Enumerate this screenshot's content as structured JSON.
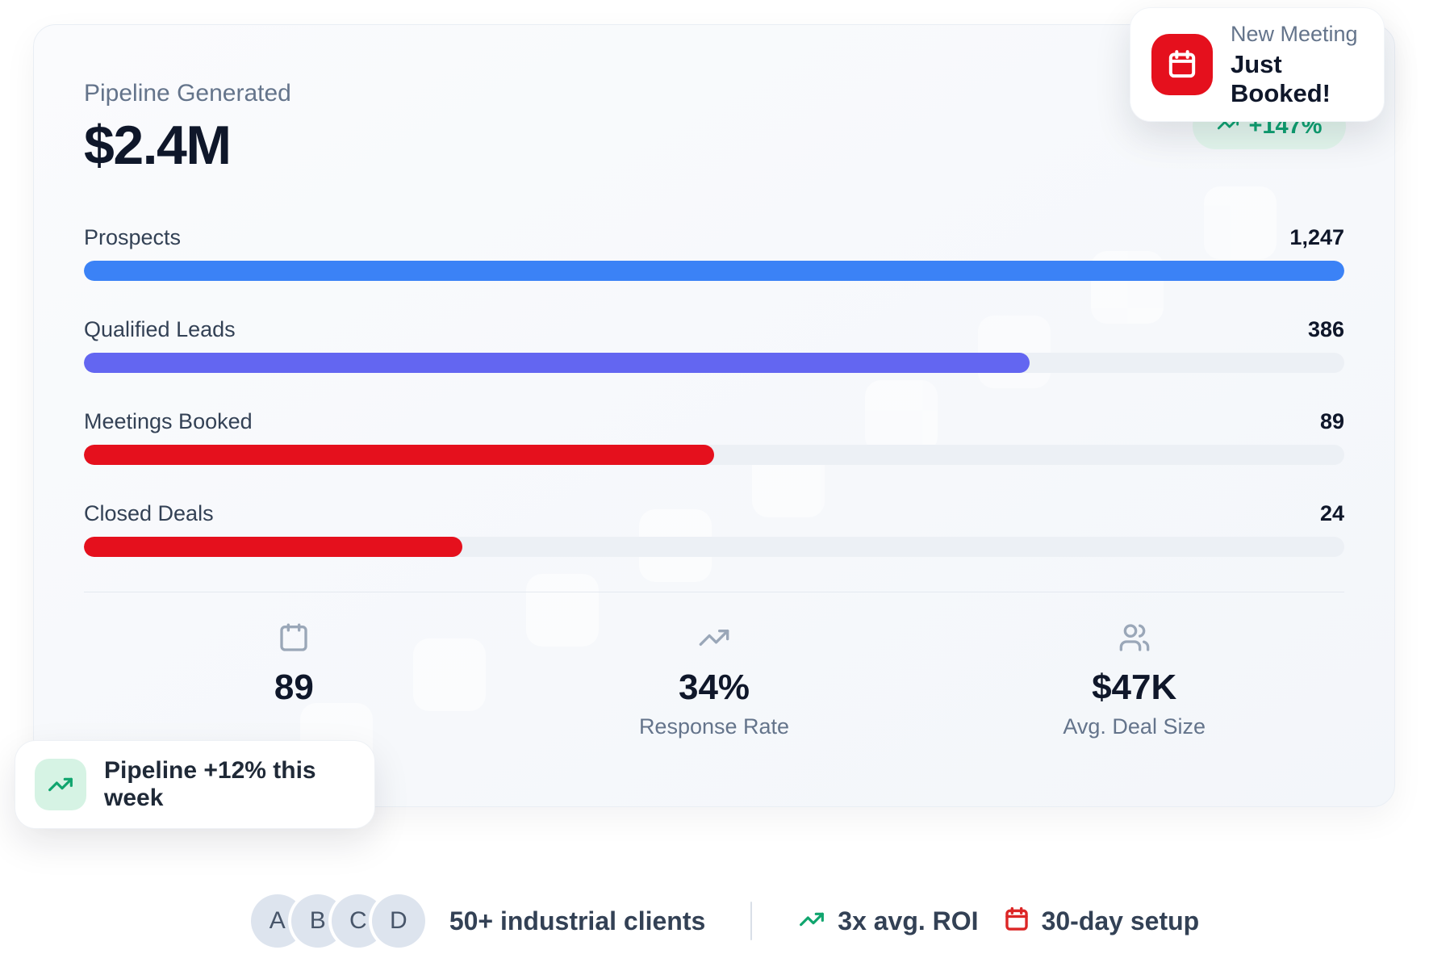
{
  "card": {
    "title": "Pipeline Generated",
    "amount": "$2.4M",
    "growth_badge": {
      "label": "+147%",
      "icon": "trend-up-icon"
    },
    "funnel": [
      {
        "label": "Prospects",
        "value": "1,247",
        "pct": 100,
        "color": "#3b82f6"
      },
      {
        "label": "Qualified Leads",
        "value": "386",
        "pct": 75,
        "color": "#6366f1"
      },
      {
        "label": "Meetings Booked",
        "value": "89",
        "pct": 50,
        "color": "#e5101d"
      },
      {
        "label": "Closed Deals",
        "value": "24",
        "pct": 30,
        "color": "#e5101d"
      }
    ],
    "stats": [
      {
        "icon": "calendar-icon",
        "value": "89"
      },
      {
        "icon": "trend-up-icon",
        "value": "34%",
        "label": "Response Rate"
      },
      {
        "icon": "users-icon",
        "value": "$47K",
        "label": "Avg. Deal Size"
      }
    ]
  },
  "notification": {
    "title": "New Meeting",
    "subtitle": "Just Booked!",
    "icon": "calendar-icon"
  },
  "toast": {
    "label": "Pipeline +12% this week",
    "icon": "trend-up-icon"
  },
  "footer": {
    "avatars": [
      "A",
      "B",
      "C",
      "D"
    ],
    "clients_label": "50+ industrial clients",
    "roi_label": "3x avg. ROI",
    "setup_label": "30-day setup"
  },
  "colors": {
    "prospects_bar": "#3b82f6",
    "qualified_bar": "#6366f1",
    "meetings_bar": "#e5101d",
    "closed_bar": "#e5101d",
    "accent_red": "#e5101d",
    "accent_green": "#10a56e",
    "badge_green_bg": "#e4f7ee",
    "badge_green_text": "#0ea171",
    "track_gray": "#ecf0f5",
    "text_dark": "#0f172a",
    "text_muted": "#64748b"
  }
}
